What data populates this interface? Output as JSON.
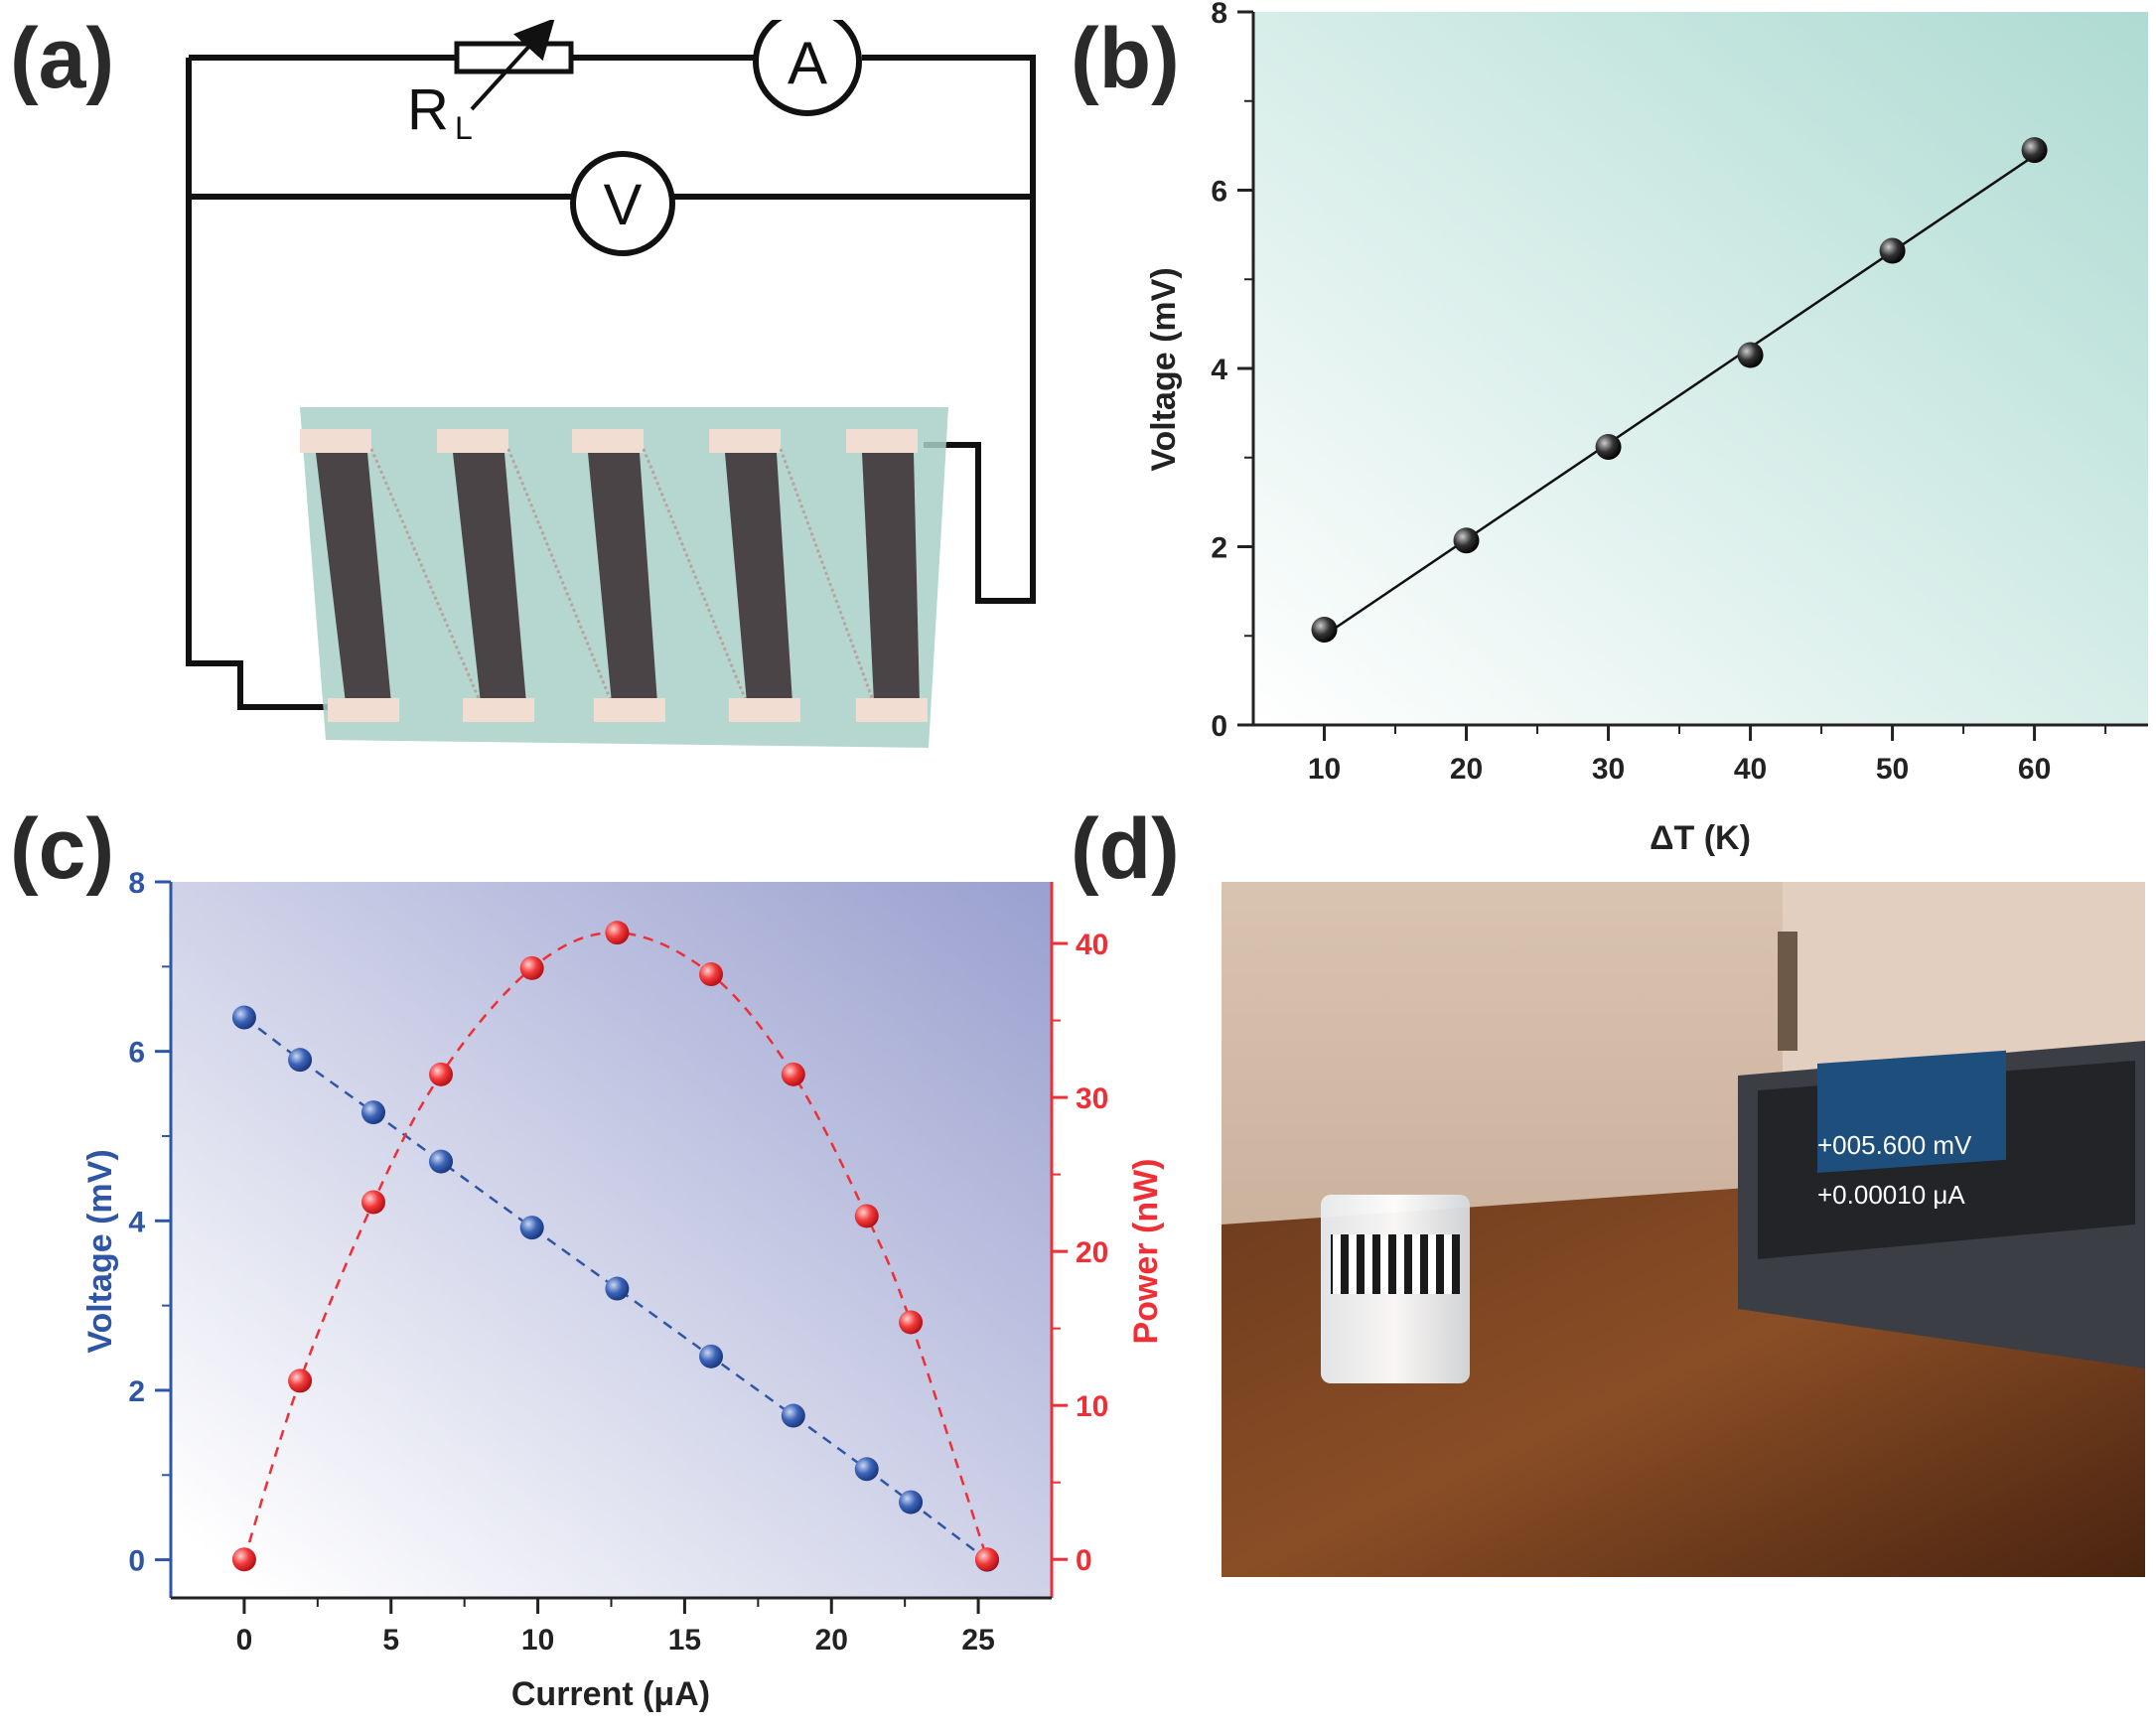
{
  "panels": {
    "a": "(a)",
    "b": "(b)",
    "c": "(c)",
    "d": "(d)"
  },
  "circuit": {
    "resistor_label": "R",
    "resistor_subscript": "L",
    "ammeter_label": "A",
    "voltmeter_label": "V",
    "leg_count": 5
  },
  "chart_data": [
    {
      "type": "scatter",
      "panel": "b",
      "xlabel": "ΔT (K)",
      "ylabel": "Voltage (mV)",
      "xlim": [
        5,
        68
      ],
      "ylim": [
        0,
        8
      ],
      "xticks": [
        10,
        20,
        30,
        40,
        50,
        60
      ],
      "yticks": [
        0,
        2,
        4,
        6,
        8
      ],
      "x": [
        10,
        20,
        30,
        40,
        50,
        60
      ],
      "y": [
        1.07,
        2.07,
        3.12,
        4.15,
        5.32,
        6.45
      ],
      "fit_line": true,
      "marker_color": "#333333",
      "background_gradient": [
        "#ffffff",
        "#aedbd2"
      ]
    },
    {
      "type": "scatter",
      "panel": "c",
      "xlabel": "Current (μA)",
      "xlim": [
        -2.5,
        27.5
      ],
      "xticks": [
        0,
        5,
        10,
        15,
        20,
        25
      ],
      "series": [
        {
          "axis": "left",
          "ylabel": "Voltage (mV)",
          "ylim": [
            -0.45,
            8
          ],
          "yticks": [
            0,
            2,
            4,
            6,
            8
          ],
          "color": "#2e56a5",
          "x": [
            0,
            1.9,
            4.4,
            6.7,
            9.8,
            12.7,
            15.9,
            18.7,
            21.2,
            22.7,
            25.3
          ],
          "y": [
            6.4,
            5.9,
            5.28,
            4.7,
            3.92,
            3.2,
            2.4,
            1.7,
            1.07,
            0.68,
            0
          ]
        },
        {
          "axis": "right",
          "ylabel": "Power (nW)",
          "ylim": [
            -2.5,
            44
          ],
          "yticks": [
            0,
            10,
            20,
            30,
            40
          ],
          "color": "#ee2f36",
          "x": [
            0,
            1.9,
            4.4,
            6.7,
            9.8,
            12.7,
            15.9,
            18.7,
            21.2,
            22.7,
            25.3
          ],
          "y": [
            0,
            11.6,
            23.2,
            31.5,
            38.4,
            40.7,
            38,
            31.5,
            22.3,
            15.4,
            0
          ]
        }
      ],
      "background_gradient": [
        "#ffffff",
        "#9aa0cf"
      ]
    }
  ],
  "photo": {
    "display_line_1": "+005.600 mV",
    "display_line_2": "+0.00010 μA"
  },
  "colors": {
    "substrate": "#a8d0c7",
    "leg": "#4a4446",
    "electrode": "#f1ddd1",
    "voltage_series": "#2e56a5",
    "power_series": "#ee2f36"
  }
}
